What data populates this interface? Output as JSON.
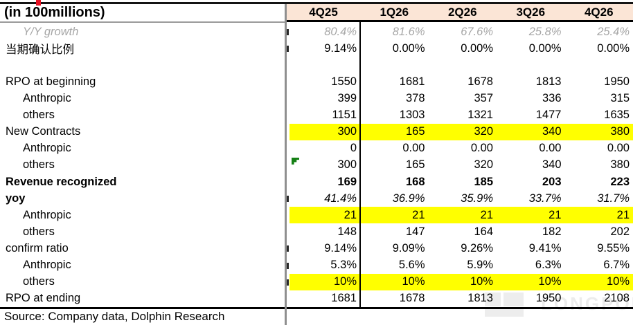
{
  "header": {
    "title": "(in 100millions)",
    "columns": [
      "4Q25",
      "1Q26",
      "2Q26",
      "3Q26",
      "4Q26"
    ]
  },
  "table": {
    "rows": [
      {
        "label": "Y/Y growth",
        "values": [
          "80.4%",
          "81.6%",
          "67.6%",
          "25.8%",
          "25.4%"
        ],
        "gray_italic": true,
        "indent": true,
        "fragment": true
      },
      {
        "label": "当期确认比例",
        "values": [
          "9.14%",
          "0.00%",
          "0.00%",
          "0.00%",
          "0.00%"
        ],
        "fragment": true
      },
      {
        "label": "",
        "values": [
          "",
          "",
          "",
          "",
          ""
        ],
        "spacer": true
      },
      {
        "label": "RPO at beginning",
        "values": [
          "1550",
          "1681",
          "1678",
          "1813",
          "1950"
        ]
      },
      {
        "label": "Anthropic",
        "values": [
          "399",
          "378",
          "357",
          "336",
          "315"
        ],
        "indent": true
      },
      {
        "label": "others",
        "values": [
          "1151",
          "1303",
          "1321",
          "1477",
          "1635"
        ],
        "indent": true
      },
      {
        "label": "New Contracts",
        "values": [
          "300",
          "165",
          "320",
          "340",
          "380"
        ],
        "highlight": true
      },
      {
        "label": "Anthropic",
        "values": [
          "0",
          "0.00",
          "0.00",
          "0.00",
          "0.00"
        ],
        "indent": true
      },
      {
        "label": "others",
        "values": [
          "300",
          "165",
          "320",
          "340",
          "380"
        ],
        "indent": true,
        "marker": "green-flag"
      },
      {
        "label": "Revenue recognized",
        "values": [
          "169",
          "168",
          "185",
          "203",
          "223"
        ],
        "bold": true
      },
      {
        "label": "yoy",
        "values": [
          "41.4%",
          "36.9%",
          "35.9%",
          "33.7%",
          "31.7%"
        ],
        "label_bold": true,
        "values_italic": true,
        "fragment": true
      },
      {
        "label": "Anthropic",
        "values": [
          "21",
          "21",
          "21",
          "21",
          "21"
        ],
        "indent": true,
        "highlight": true
      },
      {
        "label": "others",
        "values": [
          "148",
          "147",
          "164",
          "182",
          "202"
        ],
        "indent": true
      },
      {
        "label": "confirm ratio",
        "values": [
          "9.14%",
          "9.09%",
          "9.26%",
          "9.41%",
          "9.55%"
        ],
        "fragment": true
      },
      {
        "label": "Anthropic",
        "values": [
          "5.3%",
          "5.6%",
          "5.9%",
          "6.3%",
          "6.7%"
        ],
        "indent": true,
        "fragment": true
      },
      {
        "label": "others",
        "values": [
          "10%",
          "10%",
          "10%",
          "10%",
          "10%"
        ],
        "indent": true,
        "highlight": true,
        "fragment": true
      },
      {
        "label": "RPO at ending",
        "values": [
          "1681",
          "1678",
          "1813",
          "1950",
          "2108"
        ]
      }
    ]
  },
  "footer": {
    "source": "Source: Company data, Dolphin Research"
  },
  "watermark": {
    "text": "LONGPORT"
  },
  "colors": {
    "header_bg": "#FBE5D6",
    "highlight": "#FFFF00",
    "muted_text": "#A6A6A6",
    "marker_green": "#158015",
    "accent_red": "#E81123"
  }
}
